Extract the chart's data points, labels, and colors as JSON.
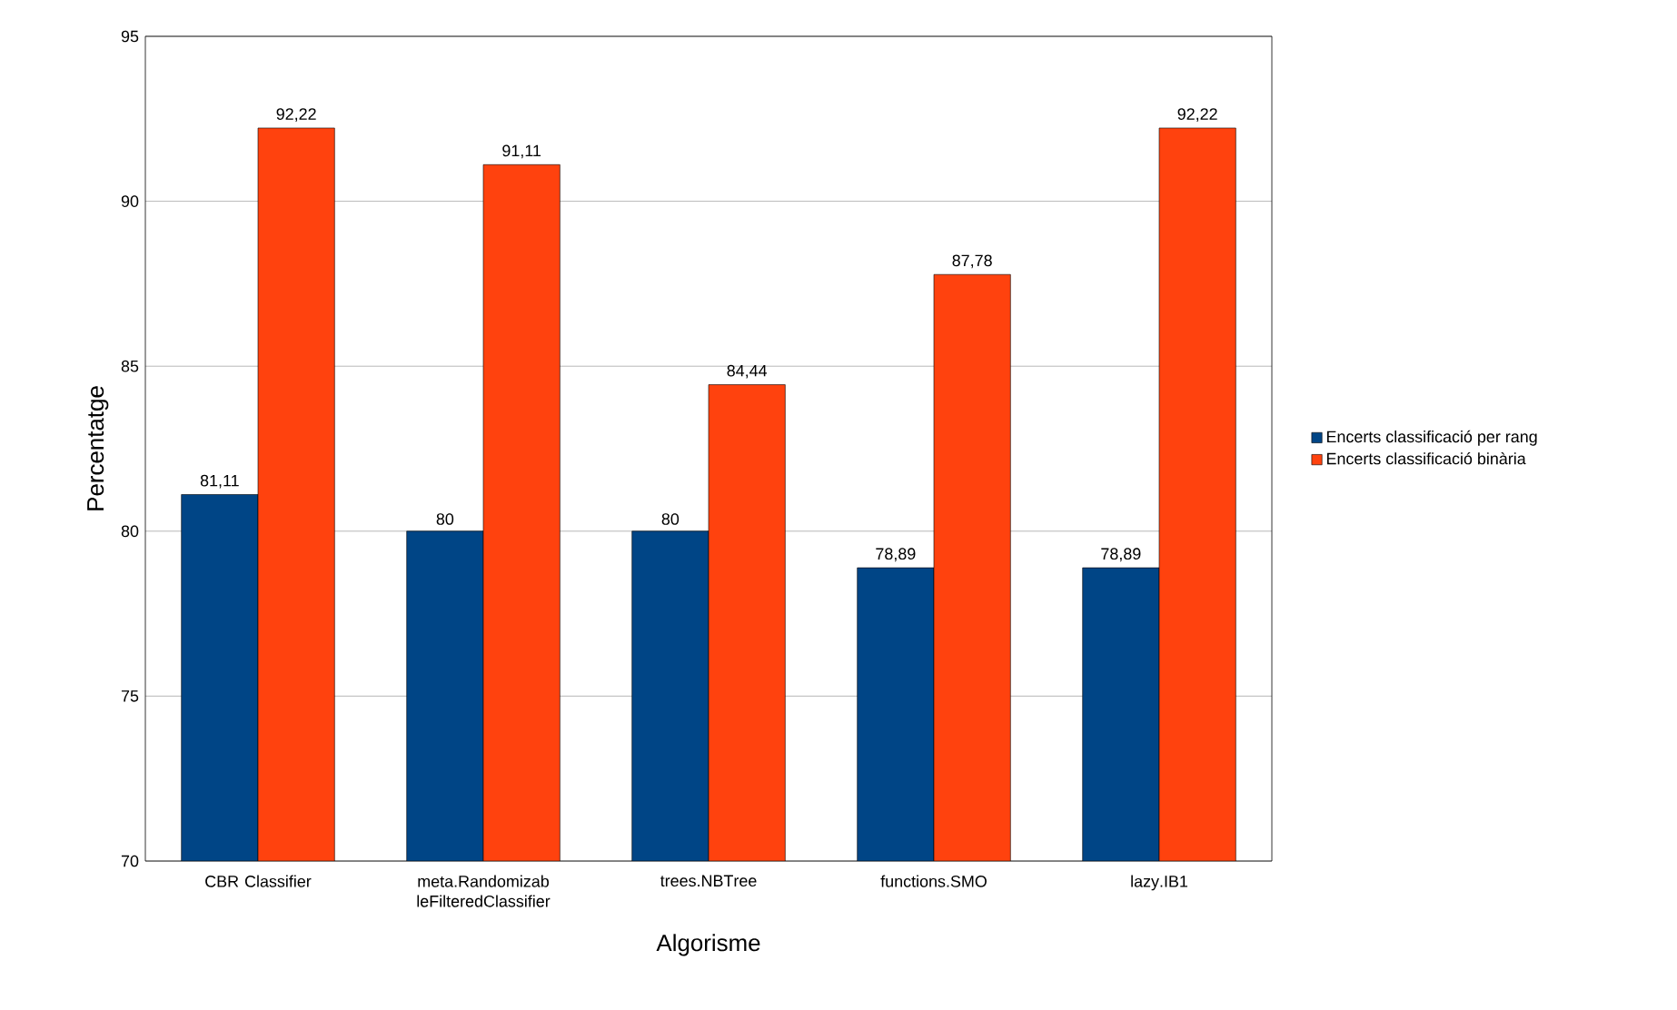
{
  "chart_data": {
    "type": "bar",
    "xlabel": "Algorisme",
    "ylabel": "Percentatge",
    "categories": [
      "CBR Classifier",
      "meta.RandomizableFilteredClassifier",
      "trees.NBTree",
      "functions.SMO",
      "lazy.IB1"
    ],
    "series": [
      {
        "name": "Encerts classificació per rang",
        "color": "#004586",
        "values": [
          81.11,
          80,
          80,
          78.89,
          78.89
        ],
        "value_labels": [
          "81,11",
          "80",
          "80",
          "78,89",
          "78,89"
        ]
      },
      {
        "name": "Encerts classificació binària",
        "color": "#ff420e",
        "values": [
          92.22,
          91.11,
          84.44,
          87.78,
          92.22
        ],
        "value_labels": [
          "92,22",
          "91,11",
          "84,44",
          "87,78",
          "92,22"
        ]
      }
    ],
    "ylim": [
      70,
      95
    ],
    "yticks": [
      70,
      75,
      80,
      85,
      90,
      95
    ],
    "grid": "y",
    "legend": "right"
  }
}
